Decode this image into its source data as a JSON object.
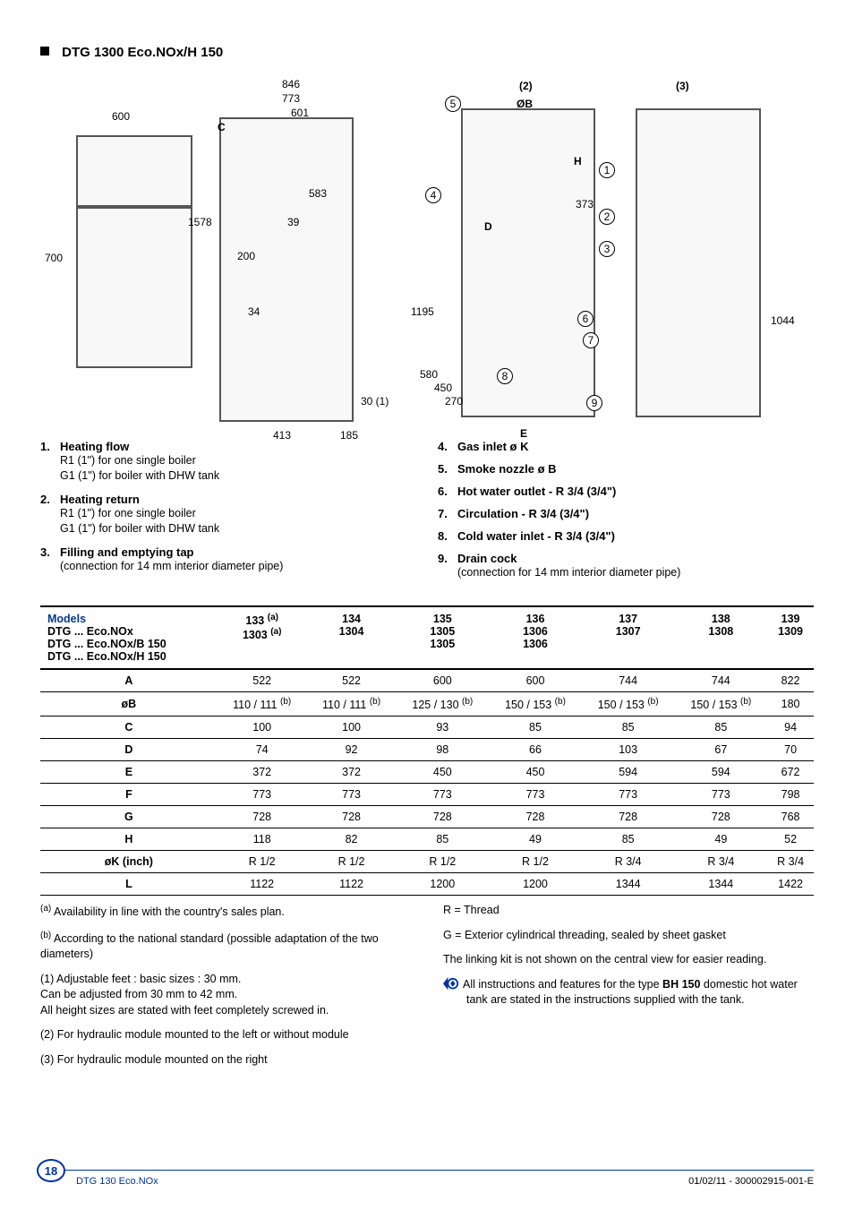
{
  "heading": "DTG 1300 Eco.NOx/H 150",
  "diagram": {
    "left_view": {
      "dims": {
        "w600": "600",
        "h700": "700",
        "h1578": "1578",
        "w200": "200",
        "h34": "34"
      }
    },
    "center_view": {
      "dims": {
        "w846": "846",
        "w773": "773",
        "w601": "601",
        "w583": "583",
        "h39": "39",
        "w413": "413",
        "w185": "185",
        "foot": "30 (1)",
        "label2": "(2)",
        "oB": "ØB",
        "C": "C"
      }
    },
    "right_panel2": {
      "dims": {
        "h1195": "1195",
        "h580": "580",
        "h450": "450",
        "h270": "270",
        "h373": "373",
        "D": "D",
        "H": "H",
        "E": "E"
      },
      "callouts": {
        "c5": "5",
        "c4": "4",
        "c1": "1",
        "c2": "2",
        "c3": "3",
        "c6": "6",
        "c7": "7",
        "c8": "8",
        "c9": "9"
      }
    },
    "right_panel3": {
      "dims": {
        "h1044": "1044",
        "label3": "(3)"
      }
    }
  },
  "legend": {
    "left": [
      {
        "num": "1.",
        "label": "Heating flow",
        "sub": [
          "R1 (1\") for one single boiler",
          "G1 (1\") for boiler with DHW tank"
        ]
      },
      {
        "num": "2.",
        "label": "Heating return",
        "sub": [
          "R1 (1\") for one single boiler",
          "G1 (1\") for boiler with DHW tank"
        ]
      },
      {
        "num": "3.",
        "label": "Filling and emptying tap",
        "sub": [
          "(connection for 14 mm interior diameter pipe)"
        ]
      }
    ],
    "right": [
      {
        "num": "4.",
        "label": "Gas inlet ø K",
        "sub": []
      },
      {
        "num": "5.",
        "label": "Smoke nozzle ø B",
        "sub": []
      },
      {
        "num": "6.",
        "label": "Hot water outlet - R 3/4 (3/4\")",
        "sub": []
      },
      {
        "num": "7.",
        "label": "Circulation - R 3/4 (3/4\")",
        "sub": []
      },
      {
        "num": "8.",
        "label": "Cold water inlet - R 3/4 (3/4\")",
        "sub": []
      },
      {
        "num": "9.",
        "label": "Drain cock",
        "sub": [
          "(connection for 14 mm interior diameter pipe)"
        ]
      }
    ]
  },
  "table": {
    "models_label": "Models",
    "model_rows": [
      {
        "name": "DTG ... Eco.NOx",
        "vals": [
          "133 ",
          "134",
          "135",
          "136",
          "137",
          "138",
          "139"
        ],
        "sup0": "(a)"
      },
      {
        "name": "DTG ... Eco.NOx/B 150",
        "vals": [
          "1303 ",
          "1304",
          "1305",
          "1306",
          "1307",
          "1308",
          "1309"
        ],
        "sup0": "(a)"
      },
      {
        "name": "DTG ... Eco.NOx/H 150",
        "vals": [
          "",
          "",
          "1305",
          "1306",
          "",
          "",
          ""
        ],
        "sup0": ""
      }
    ],
    "data_rows": [
      {
        "label": "A",
        "vals": [
          "522",
          "522",
          "600",
          "600",
          "744",
          "744",
          "822"
        ]
      },
      {
        "label": "øB",
        "vals": [
          "110 / 111 ",
          "110 / 111 ",
          "125 / 130 ",
          "150 / 153 ",
          "150 / 153 ",
          "150 / 153 ",
          "180"
        ],
        "supb": true
      },
      {
        "label": "C",
        "vals": [
          "100",
          "100",
          "93",
          "85",
          "85",
          "85",
          "94"
        ]
      },
      {
        "label": "D",
        "vals": [
          "74",
          "92",
          "98",
          "66",
          "103",
          "67",
          "70"
        ]
      },
      {
        "label": "E",
        "vals": [
          "372",
          "372",
          "450",
          "450",
          "594",
          "594",
          "672"
        ]
      },
      {
        "label": "F",
        "vals": [
          "773",
          "773",
          "773",
          "773",
          "773",
          "773",
          "798"
        ]
      },
      {
        "label": "G",
        "vals": [
          "728",
          "728",
          "728",
          "728",
          "728",
          "728",
          "768"
        ]
      },
      {
        "label": "H",
        "vals": [
          "118",
          "82",
          "85",
          "49",
          "85",
          "49",
          "52"
        ]
      },
      {
        "label": "øK (inch)",
        "vals": [
          "R 1/2",
          "R 1/2",
          "R 1/2",
          "R 1/2",
          "R 3/4",
          "R 3/4",
          "R 3/4"
        ]
      },
      {
        "label": "L",
        "vals": [
          "1122",
          "1122",
          "1200",
          "1200",
          "1344",
          "1344",
          "1422"
        ]
      }
    ]
  },
  "notes": {
    "left": [
      {
        "sup": "(a)",
        "text": " Availability in line with the country's sales plan."
      },
      {
        "sup": "(b)",
        "text": " According to the national standard (possible adaptation of the two diameters)"
      },
      {
        "sup": "",
        "text": "(1) Adjustable feet : basic sizes : 30 mm.\nCan be adjusted from 30 mm to 42 mm.\nAll height sizes are stated with feet completely screwed in."
      },
      {
        "sup": "",
        "text": "(2) For hydraulic module mounted to the left or without module"
      },
      {
        "sup": "",
        "text": "(3) For hydraulic module mounted on the right"
      }
    ],
    "right": [
      "R = Thread",
      "G = Exterior cylindrical threading, sealed by sheet gasket",
      "The linking kit is not shown on the central view for easier reading."
    ],
    "info": "All instructions and features for the type BH 150 domestic hot water tank are stated in the instructions supplied with the tank.",
    "info_bold": "BH 150"
  },
  "footer": {
    "page": "18",
    "title": "DTG 130 Eco.NOx",
    "rev": "01/02/11 - 300002915-001-E"
  }
}
